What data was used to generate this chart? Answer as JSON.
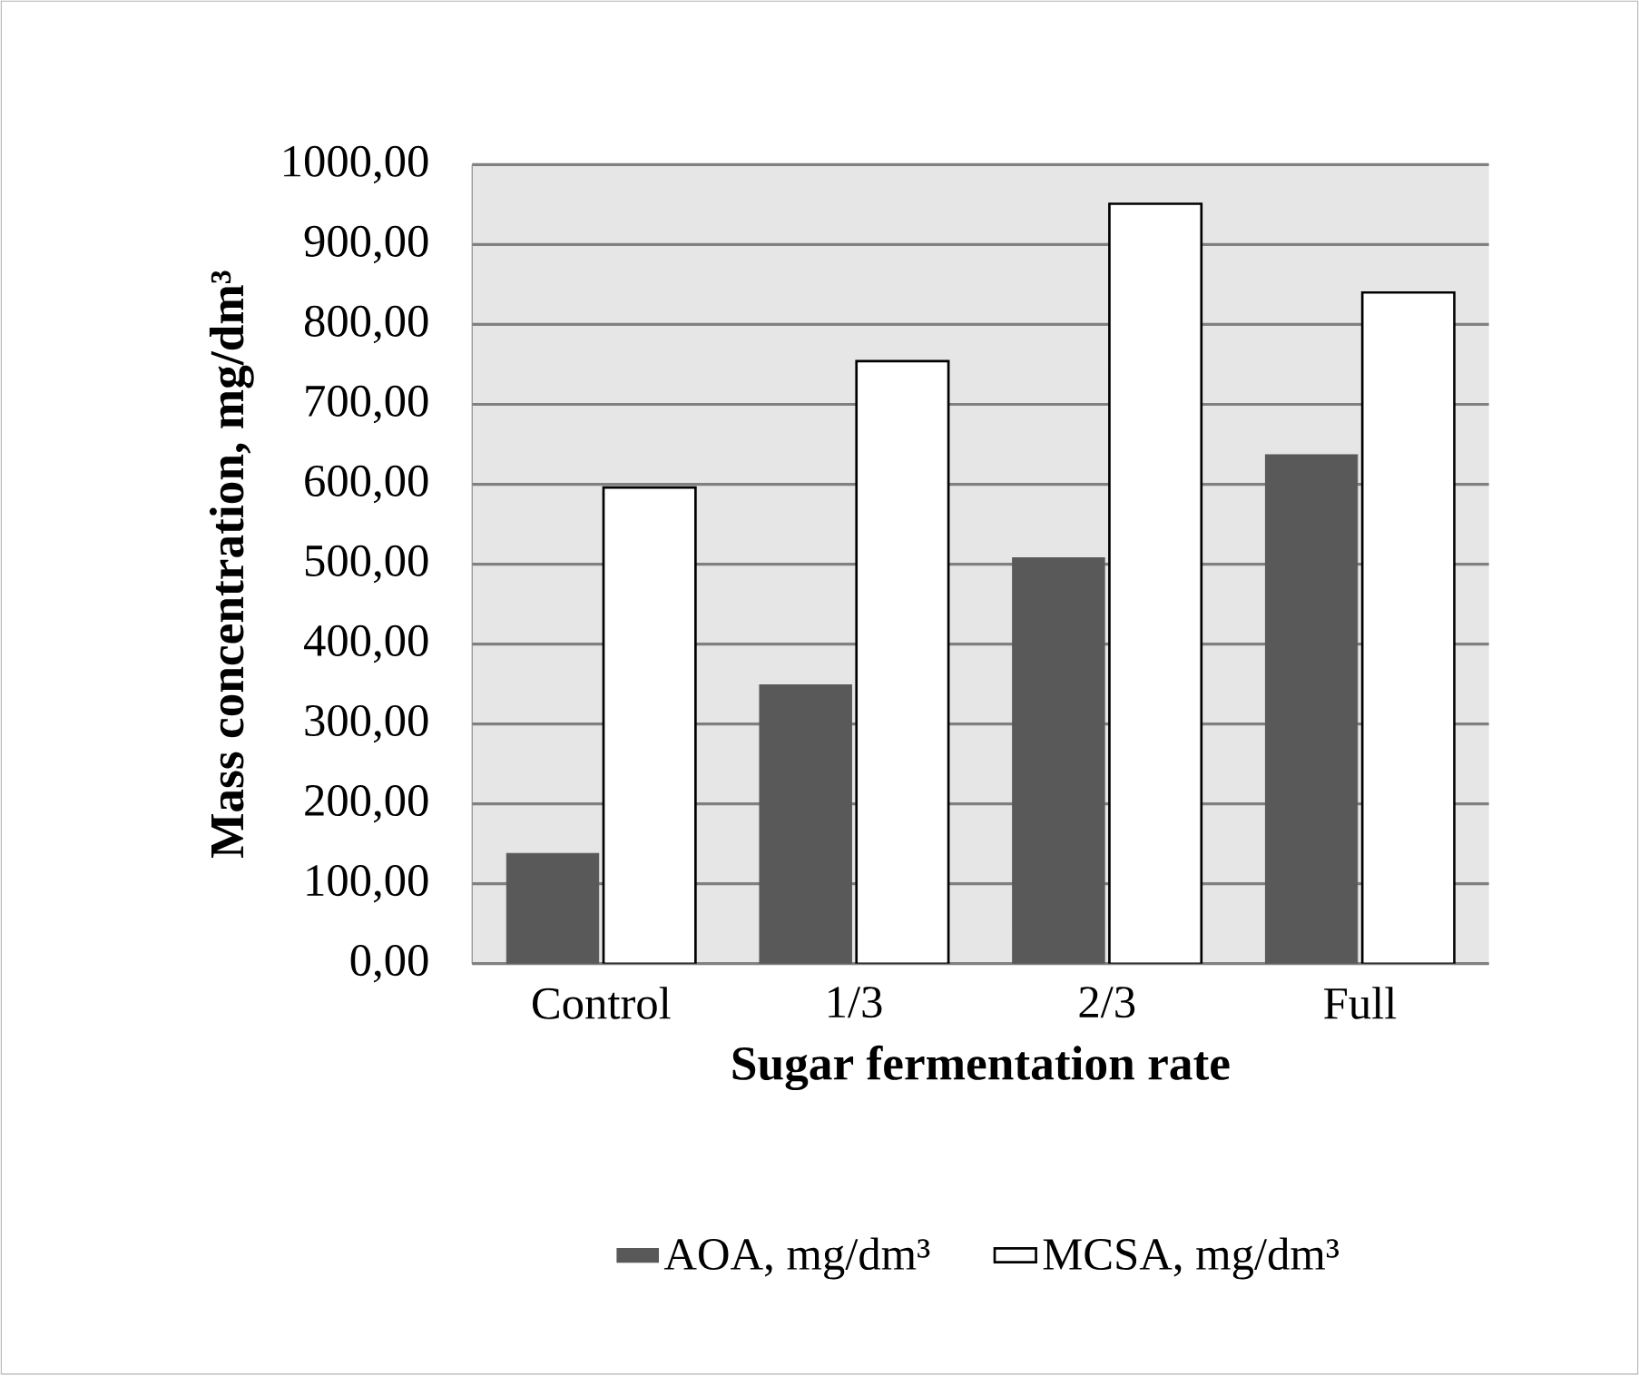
{
  "chart_data": {
    "type": "bar",
    "xlabel": "Sugar fermentation rate",
    "ylabel": "Mass concentration, mg/dm³",
    "categories": [
      "Control",
      "1/3",
      "2/3",
      "Full"
    ],
    "series": [
      {
        "name": "AOA, mg/dm³",
        "color": "#595959",
        "values": [
          138,
          349,
          508,
          637
        ]
      },
      {
        "name": "MCSA, mg/dm³",
        "color": "#ffffff",
        "values": [
          596,
          754,
          951,
          840
        ]
      }
    ],
    "ylim": [
      0,
      1000
    ],
    "yticks": [
      {
        "value": 0,
        "label": "0,00"
      },
      {
        "value": 100,
        "label": "100,00"
      },
      {
        "value": 200,
        "label": "200,00"
      },
      {
        "value": 300,
        "label": "300,00"
      },
      {
        "value": 400,
        "label": "400,00"
      },
      {
        "value": 500,
        "label": "500,00"
      },
      {
        "value": 600,
        "label": "600,00"
      },
      {
        "value": 700,
        "label": "700,00"
      },
      {
        "value": 800,
        "label": "800,00"
      },
      {
        "value": 900,
        "label": "900,00"
      },
      {
        "value": 1000,
        "label": "1000,00"
      }
    ],
    "grid": "y",
    "legend": "bottom"
  }
}
